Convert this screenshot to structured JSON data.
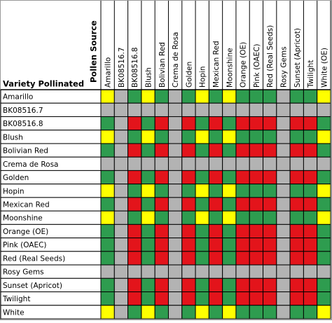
{
  "header": {
    "row_title": "Variety Pollinated",
    "column_title": "Pollen Source"
  },
  "columns": [
    "Amarillo",
    "BK08516.7",
    "BK08516.8",
    "Blush",
    "Bolivian Red",
    "Crema de Rosa",
    "Golden",
    "Hopin",
    "Mexican Red",
    "Moonshine",
    "Orange (OE)",
    "Pink (OAEC)",
    "Red (Real Seeds)",
    "Rosy Gems",
    "Sunset (Apricot)",
    "Twilight",
    "White (OE)"
  ],
  "rows": [
    {
      "label": "Amarillo",
      "cells": [
        "#ffff00",
        "#b3b3b3",
        "#2e9c4f",
        "#ffff00",
        "#2e9c4f",
        "#b3b3b3",
        "#2e9c4f",
        "#ffff00",
        "#2e9c4f",
        "#ffff00",
        "#2e9c4f",
        "#2e9c4f",
        "#2e9c4f",
        "#b3b3b3",
        "#2e9c4f",
        "#2e9c4f",
        "#ffff00"
      ]
    },
    {
      "label": "BK08516.7",
      "cells": [
        "#b3b3b3",
        "#b3b3b3",
        "#b3b3b3",
        "#b3b3b3",
        "#b3b3b3",
        "#b3b3b3",
        "#b3b3b3",
        "#b3b3b3",
        "#b3b3b3",
        "#b3b3b3",
        "#b3b3b3",
        "#b3b3b3",
        "#b3b3b3",
        "#b3b3b3",
        "#b3b3b3",
        "#b3b3b3",
        "#b3b3b3"
      ]
    },
    {
      "label": "BK08516.8",
      "cells": [
        "#2e9c4f",
        "#b3b3b3",
        "#e3141b",
        "#2e9c4f",
        "#e3141b",
        "#b3b3b3",
        "#e3141b",
        "#2e9c4f",
        "#e3141b",
        "#2e9c4f",
        "#e3141b",
        "#e3141b",
        "#e3141b",
        "#b3b3b3",
        "#e3141b",
        "#e3141b",
        "#2e9c4f"
      ]
    },
    {
      "label": "Blush",
      "cells": [
        "#ffff00",
        "#b3b3b3",
        "#2e9c4f",
        "#ffff00",
        "#2e9c4f",
        "#b3b3b3",
        "#2e9c4f",
        "#ffff00",
        "#2e9c4f",
        "#ffff00",
        "#2e9c4f",
        "#2e9c4f",
        "#2e9c4f",
        "#b3b3b3",
        "#2e9c4f",
        "#2e9c4f",
        "#ffff00"
      ]
    },
    {
      "label": "Bolivian Red",
      "cells": [
        "#2e9c4f",
        "#b3b3b3",
        "#e3141b",
        "#2e9c4f",
        "#e3141b",
        "#b3b3b3",
        "#e3141b",
        "#2e9c4f",
        "#e3141b",
        "#2e9c4f",
        "#e3141b",
        "#e3141b",
        "#e3141b",
        "#b3b3b3",
        "#e3141b",
        "#e3141b",
        "#2e9c4f"
      ]
    },
    {
      "label": "Crema de Rosa",
      "cells": [
        "#b3b3b3",
        "#b3b3b3",
        "#b3b3b3",
        "#b3b3b3",
        "#b3b3b3",
        "#b3b3b3",
        "#b3b3b3",
        "#b3b3b3",
        "#b3b3b3",
        "#b3b3b3",
        "#b3b3b3",
        "#b3b3b3",
        "#b3b3b3",
        "#b3b3b3",
        "#b3b3b3",
        "#b3b3b3",
        "#b3b3b3"
      ]
    },
    {
      "label": "Golden",
      "cells": [
        "#2e9c4f",
        "#b3b3b3",
        "#e3141b",
        "#2e9c4f",
        "#e3141b",
        "#b3b3b3",
        "#e3141b",
        "#2e9c4f",
        "#e3141b",
        "#2e9c4f",
        "#e3141b",
        "#e3141b",
        "#e3141b",
        "#b3b3b3",
        "#e3141b",
        "#e3141b",
        "#2e9c4f"
      ]
    },
    {
      "label": "Hopin",
      "cells": [
        "#ffff00",
        "#b3b3b3",
        "#2e9c4f",
        "#ffff00",
        "#2e9c4f",
        "#b3b3b3",
        "#2e9c4f",
        "#ffff00",
        "#2e9c4f",
        "#ffff00",
        "#2e9c4f",
        "#2e9c4f",
        "#2e9c4f",
        "#b3b3b3",
        "#2e9c4f",
        "#2e9c4f",
        "#ffff00"
      ]
    },
    {
      "label": "Mexican Red",
      "cells": [
        "#2e9c4f",
        "#b3b3b3",
        "#e3141b",
        "#2e9c4f",
        "#e3141b",
        "#b3b3b3",
        "#e3141b",
        "#2e9c4f",
        "#e3141b",
        "#2e9c4f",
        "#e3141b",
        "#e3141b",
        "#e3141b",
        "#b3b3b3",
        "#e3141b",
        "#e3141b",
        "#2e9c4f"
      ]
    },
    {
      "label": "Moonshine",
      "cells": [
        "#ffff00",
        "#b3b3b3",
        "#2e9c4f",
        "#ffff00",
        "#2e9c4f",
        "#b3b3b3",
        "#2e9c4f",
        "#ffff00",
        "#2e9c4f",
        "#ffff00",
        "#2e9c4f",
        "#2e9c4f",
        "#2e9c4f",
        "#b3b3b3",
        "#2e9c4f",
        "#2e9c4f",
        "#ffff00"
      ]
    },
    {
      "label": "Orange (OE)",
      "cells": [
        "#2e9c4f",
        "#b3b3b3",
        "#e3141b",
        "#2e9c4f",
        "#e3141b",
        "#b3b3b3",
        "#e3141b",
        "#2e9c4f",
        "#e3141b",
        "#2e9c4f",
        "#e3141b",
        "#e3141b",
        "#e3141b",
        "#b3b3b3",
        "#e3141b",
        "#e3141b",
        "#2e9c4f"
      ]
    },
    {
      "label": "Pink (OAEC)",
      "cells": [
        "#2e9c4f",
        "#b3b3b3",
        "#e3141b",
        "#2e9c4f",
        "#e3141b",
        "#b3b3b3",
        "#e3141b",
        "#2e9c4f",
        "#e3141b",
        "#2e9c4f",
        "#e3141b",
        "#e3141b",
        "#e3141b",
        "#b3b3b3",
        "#e3141b",
        "#e3141b",
        "#2e9c4f"
      ]
    },
    {
      "label": "Red (Real Seeds)",
      "cells": [
        "#2e9c4f",
        "#b3b3b3",
        "#e3141b",
        "#2e9c4f",
        "#e3141b",
        "#b3b3b3",
        "#e3141b",
        "#2e9c4f",
        "#e3141b",
        "#2e9c4f",
        "#e3141b",
        "#e3141b",
        "#e3141b",
        "#b3b3b3",
        "#e3141b",
        "#e3141b",
        "#2e9c4f"
      ]
    },
    {
      "label": "Rosy Gems",
      "cells": [
        "#b3b3b3",
        "#b3b3b3",
        "#b3b3b3",
        "#b3b3b3",
        "#b3b3b3",
        "#b3b3b3",
        "#b3b3b3",
        "#b3b3b3",
        "#b3b3b3",
        "#b3b3b3",
        "#b3b3b3",
        "#b3b3b3",
        "#b3b3b3",
        "#b3b3b3",
        "#b3b3b3",
        "#b3b3b3",
        "#b3b3b3"
      ]
    },
    {
      "label": "Sunset (Apricot)",
      "cells": [
        "#2e9c4f",
        "#b3b3b3",
        "#e3141b",
        "#2e9c4f",
        "#e3141b",
        "#b3b3b3",
        "#e3141b",
        "#2e9c4f",
        "#e3141b",
        "#2e9c4f",
        "#e3141b",
        "#e3141b",
        "#e3141b",
        "#b3b3b3",
        "#e3141b",
        "#e3141b",
        "#2e9c4f"
      ]
    },
    {
      "label": "Twilight",
      "cells": [
        "#2e9c4f",
        "#b3b3b3",
        "#e3141b",
        "#2e9c4f",
        "#e3141b",
        "#b3b3b3",
        "#e3141b",
        "#2e9c4f",
        "#e3141b",
        "#2e9c4f",
        "#e3141b",
        "#e3141b",
        "#e3141b",
        "#b3b3b3",
        "#e3141b",
        "#e3141b",
        "#2e9c4f"
      ]
    },
    {
      "label": "White",
      "cells": [
        "#ffff00",
        "#b3b3b3",
        "#2e9c4f",
        "#ffff00",
        "#2e9c4f",
        "#b3b3b3",
        "#2e9c4f",
        "#ffff00",
        "#2e9c4f",
        "#ffff00",
        "#2e9c4f",
        "#2e9c4f",
        "#2e9c4f",
        "#b3b3b3",
        "#2e9c4f",
        "#2e9c4f",
        "#ffff00"
      ]
    }
  ]
}
